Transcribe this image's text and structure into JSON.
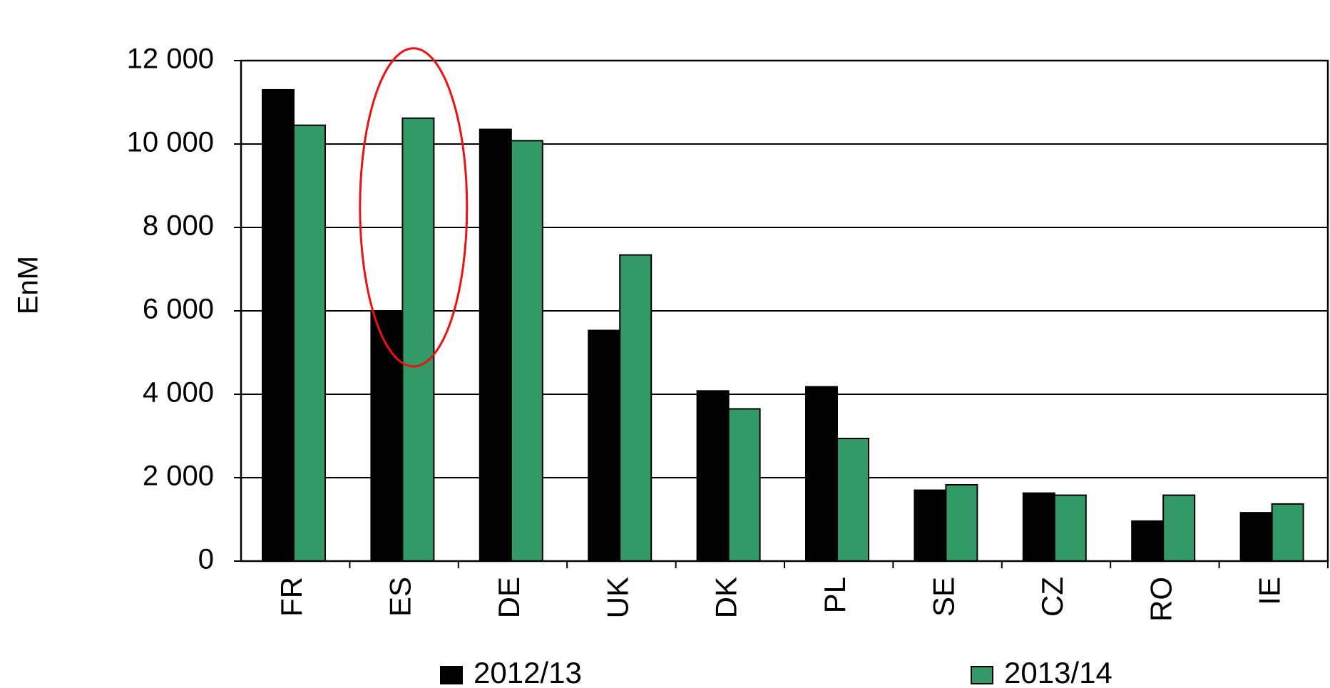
{
  "chart_data": {
    "type": "bar",
    "ylabel": "EnM",
    "ylim": [
      0,
      12000
    ],
    "yticks": [
      0,
      2000,
      4000,
      6000,
      8000,
      10000,
      12000
    ],
    "ytick_labels": [
      "0",
      "2 000",
      "4 000",
      "6 000",
      "8 000",
      "10 000",
      "12 000"
    ],
    "grid": true,
    "legend_position": "bottom",
    "categories": [
      "FR",
      "ES",
      "DE",
      "UK",
      "DK",
      "PL",
      "SE",
      "CZ",
      "RO",
      "IE"
    ],
    "series": [
      {
        "name": "2012/13",
        "color": "#000000",
        "values": [
          11300,
          6000,
          10350,
          5530,
          4080,
          4180,
          1700,
          1630,
          960,
          1160
        ]
      },
      {
        "name": "2013/14",
        "color": "#339966",
        "values": [
          10450,
          10620,
          10080,
          7340,
          3650,
          2940,
          1830,
          1580,
          1580,
          1370
        ]
      }
    ],
    "annotations": [
      {
        "type": "ellipse",
        "color": "#ee1111",
        "target_category": "ES"
      }
    ]
  }
}
